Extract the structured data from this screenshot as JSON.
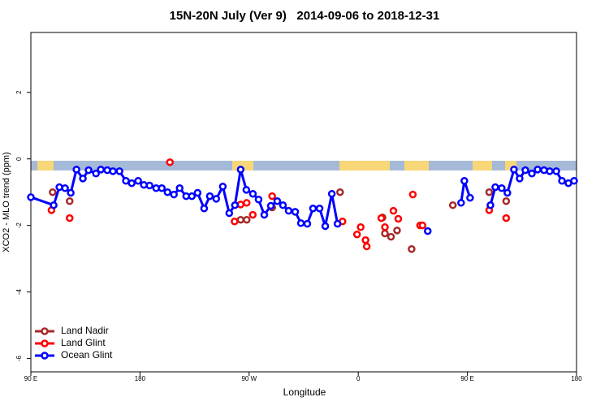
{
  "chart_data": {
    "type": "line",
    "title": "15N-20N July (Ver 9)   2014-09-06 to 2018-12-31",
    "x_label": "Longitude",
    "y_label": "XCO2 - MLO trend (ppm)",
    "xlim": [
      90,
      540
    ],
    "ylim": [
      -6.4,
      3.8
    ],
    "xticks": [
      {
        "value": 90,
        "label": "90 E"
      },
      180,
      {
        "value": 270,
        "label": "90 W"
      },
      {
        "value": 360,
        "label": "0"
      },
      {
        "value": 450,
        "label": "90 E"
      },
      {
        "value": 540,
        "label": "180"
      }
    ],
    "yticks": [
      -6,
      -4,
      -2,
      0,
      2
    ],
    "legend": "bottomleft",
    "series": [
      {
        "name": "Land Nadir",
        "color": "#a52a2a",
        "draw": "points",
        "x": [
          108,
          122,
          263,
          268,
          289,
          345,
          380,
          382,
          387,
          392,
          404,
          438,
          468,
          482
        ],
        "values": [
          -1.0,
          -1.27,
          -1.83,
          -1.83,
          -1.46,
          -1.0,
          -1.76,
          -2.24,
          -2.34,
          -2.15,
          -2.71,
          -1.39,
          -1.0,
          -1.27
        ]
      },
      {
        "name": "Land Glint",
        "color": "#ff0000",
        "draw": "points",
        "x": [
          107,
          122,
          204.7,
          258,
          263,
          268,
          273,
          289,
          347,
          359,
          362,
          366,
          367,
          379,
          382,
          389,
          393,
          405,
          411,
          413,
          468,
          482
        ],
        "values": [
          -1.54,
          -1.78,
          -0.1,
          -1.88,
          -1.37,
          -1.32,
          -1.68,
          -1.12,
          -1.88,
          -2.27,
          -2.05,
          -2.44,
          -2.63,
          -1.78,
          -2.05,
          -1.56,
          -1.8,
          -1.07,
          -2.0,
          -2.0,
          -1.54,
          -1.78
        ]
      },
      {
        "name": "Ocean Glint",
        "color": "#0000ff",
        "draw": "lines",
        "x": [
          90,
          108.8,
          113.5,
          118.2,
          122.9,
          127.6,
          132.9,
          137.6,
          143.7,
          147.7,
          153,
          157.7,
          163.1,
          168.4,
          173.2,
          178.5,
          183.2,
          187.9,
          193.3,
          198,
          202.7,
          208,
          212.7,
          218.1,
          222.8,
          227.5,
          232.9,
          237.6,
          242.9,
          248.3,
          253.6,
          258.3,
          263,
          267.7,
          273.1,
          277.8,
          282.5,
          287.9,
          293.2,
          297.9,
          302.6,
          308,
          312.7,
          318,
          322.7,
          328.1,
          332.8,
          338.2,
          342.9,
          380,
          417.3,
          430,
          444.8,
          447.5,
          452.2,
          460,
          469,
          473,
          478.3,
          483,
          488.4,
          493.1,
          497.8,
          503.2,
          507.9,
          513.2,
          517.9,
          523.3,
          528,
          533.3,
          538
        ],
        "values": [
          -1.15,
          -1.39,
          -0.85,
          -0.88,
          -1.02,
          -0.32,
          -0.59,
          -0.34,
          -0.44,
          -0.32,
          -0.34,
          -0.37,
          -0.37,
          -0.66,
          -0.73,
          -0.66,
          -0.78,
          -0.8,
          -0.88,
          -0.88,
          -1.0,
          -1.07,
          -0.88,
          -1.12,
          -1.12,
          -1.02,
          -1.49,
          -1.12,
          -1.2,
          -0.83,
          -1.63,
          -1.39,
          -0.32,
          -0.93,
          -1.05,
          -1.22,
          -1.68,
          -1.41,
          -1.27,
          -1.39,
          -1.56,
          -1.59,
          -1.93,
          -1.95,
          -1.49,
          -1.49,
          -2.02,
          -1.05,
          -1.95,
          null,
          -2.17,
          null,
          -1.32,
          -0.66,
          -1.17,
          null,
          -1.39,
          -0.85,
          -0.88,
          -1.02,
          -0.32,
          -0.59,
          -0.34,
          -0.44,
          -0.32,
          -0.34,
          -0.37,
          -0.37,
          -0.66,
          -0.73,
          -0.66
        ]
      }
    ]
  }
}
